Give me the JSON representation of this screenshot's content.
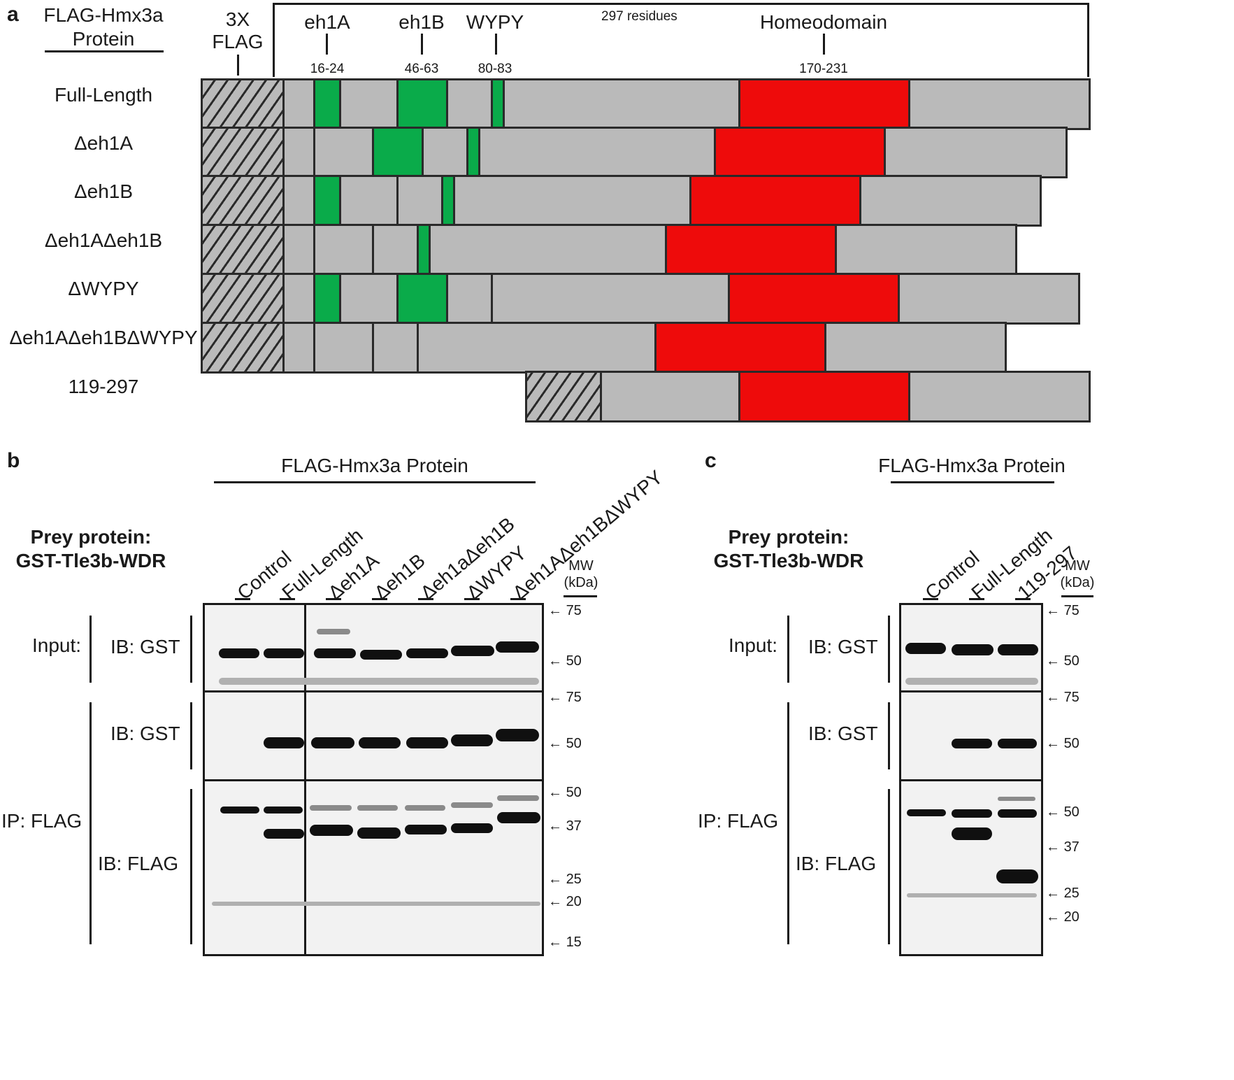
{
  "panel_a": {
    "letter": "a",
    "header_title_line1": "FLAG-Hmx3a",
    "header_title_line2": "Protein",
    "flag_label_line1": "3X",
    "flag_label_line2": "FLAG",
    "residues": "297 residues",
    "domains": [
      {
        "name": "eh1A",
        "range": "16-24"
      },
      {
        "name": "eh1B",
        "range": "46-63"
      },
      {
        "name": "WYPY",
        "range": "80-83"
      },
      {
        "name": "Homeodomain",
        "range": "170-231"
      }
    ],
    "rows": [
      "Full-Length",
      "Δeh1A",
      "Δeh1B",
      "Δeh1AΔeh1B",
      "ΔWYPY",
      "Δeh1AΔeh1BΔWYPY",
      "119-297"
    ],
    "colors": {
      "motif": "#0aab4a",
      "homeodomain": "#ee0b0b",
      "body": "#bababa"
    }
  },
  "panel_b": {
    "letter": "b",
    "header": "FLAG-Hmx3a Protein",
    "prey_line1": "Prey protein:",
    "prey_line2": "GST-Tle3b-WDR",
    "lanes": [
      "Control",
      "Full-Length",
      "Δeh1A",
      "Δeh1B",
      "Δeh1aΔeh1B",
      "ΔWYPY",
      "Δeh1AΔeh1BΔWYPY"
    ],
    "mw_line1": "MW",
    "mw_line2": "(kDa)",
    "input_label": "Input:",
    "ip_label": "IP: FLAG",
    "ib_gst": "IB: GST",
    "ib_gst2": "IB: GST",
    "ib_flag": "IB: FLAG",
    "markers_input": [
      "75",
      "50"
    ],
    "markers_ipgst": [
      "75",
      "50"
    ],
    "markers_ipflag": [
      "50",
      "37",
      "25",
      "20",
      "15"
    ]
  },
  "panel_c": {
    "letter": "c",
    "header": "FLAG-Hmx3a Protein",
    "prey_line1": "Prey protein:",
    "prey_line2": "GST-Tle3b-WDR",
    "lanes": [
      "Control",
      "Full-Length",
      "119-297"
    ],
    "mw_line1": "MW",
    "mw_line2": "(kDa)",
    "input_label": "Input:",
    "ip_label": "IP: FLAG",
    "ib_gst": "IB: GST",
    "ib_gst2": "IB: GST",
    "ib_flag": "IB: FLAG",
    "markers_input": [
      "75",
      "50"
    ],
    "markers_ipgst": [
      "75",
      "50"
    ],
    "markers_ipflag": [
      "50",
      "37",
      "25",
      "20"
    ]
  }
}
